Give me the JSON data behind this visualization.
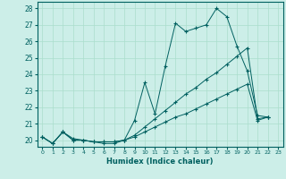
{
  "xlabel": "Humidex (Indice chaleur)",
  "color": "#006060",
  "bg_color": "#cceee8",
  "grid_color": "#aaddcc",
  "ylim": [
    19.6,
    28.4
  ],
  "xlim": [
    -0.5,
    23.5
  ],
  "yticks": [
    20,
    21,
    22,
    23,
    24,
    25,
    26,
    27,
    28
  ],
  "xticks": [
    0,
    1,
    2,
    3,
    4,
    5,
    6,
    7,
    8,
    9,
    10,
    11,
    12,
    13,
    14,
    15,
    16,
    17,
    18,
    19,
    20,
    21,
    22,
    23
  ],
  "y_top": [
    20.2,
    19.8,
    20.5,
    20.1,
    20.0,
    19.9,
    19.8,
    19.8,
    20.0,
    21.2,
    23.5,
    21.6,
    24.5,
    27.1,
    26.6,
    26.8,
    27.0,
    28.0,
    27.5,
    25.7,
    24.2,
    21.5,
    21.4,
    null
  ],
  "y_mid": [
    20.2,
    19.8,
    20.5,
    20.0,
    20.0,
    19.9,
    19.9,
    19.9,
    20.0,
    20.3,
    20.8,
    21.3,
    21.8,
    22.3,
    22.8,
    23.2,
    23.7,
    24.1,
    24.6,
    25.1,
    25.6,
    21.3,
    21.4,
    null
  ],
  "y_bot": [
    20.2,
    19.8,
    20.5,
    20.0,
    20.0,
    19.9,
    19.9,
    19.9,
    20.0,
    20.2,
    20.5,
    20.8,
    21.1,
    21.4,
    21.6,
    21.9,
    22.2,
    22.5,
    22.8,
    23.1,
    23.4,
    21.2,
    21.4,
    null
  ]
}
